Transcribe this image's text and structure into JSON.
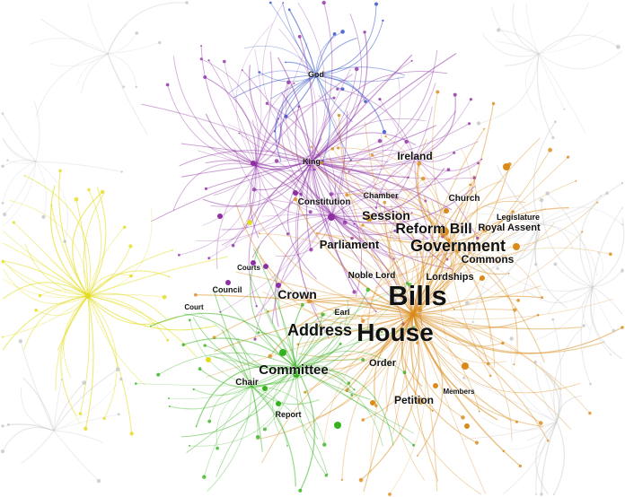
{
  "palette": {
    "purple": "#8e2ea3",
    "orange": "#d98a18",
    "yellow": "#e3dc1c",
    "green": "#37b21f",
    "blue": "#2b4ec6",
    "grey": "#c7c7c7"
  },
  "nodes": [
    {
      "id": "god",
      "label": "God",
      "cluster": "blue"
    },
    {
      "id": "king",
      "label": "King",
      "cluster": "purple"
    },
    {
      "id": "ireland",
      "label": "Ireland",
      "cluster": "purple"
    },
    {
      "id": "chamber",
      "label": "Chamber",
      "cluster": "purple"
    },
    {
      "id": "constitution",
      "label": "Constitution",
      "cluster": "purple"
    },
    {
      "id": "church",
      "label": "Church",
      "cluster": "orange"
    },
    {
      "id": "session",
      "label": "Session",
      "cluster": "orange"
    },
    {
      "id": "reformbill",
      "label": "Reform Bill",
      "cluster": "orange"
    },
    {
      "id": "legislature",
      "label": "Legislature",
      "cluster": "orange"
    },
    {
      "id": "royalassent",
      "label": "Royal Assent",
      "cluster": "orange"
    },
    {
      "id": "parliament",
      "label": "Parliament",
      "cluster": "purple"
    },
    {
      "id": "government",
      "label": "Government",
      "cluster": "orange"
    },
    {
      "id": "commons",
      "label": "Commons",
      "cluster": "orange"
    },
    {
      "id": "courts",
      "label": "Courts",
      "cluster": "purple"
    },
    {
      "id": "noblelord",
      "label": "Noble Lord",
      "cluster": "orange"
    },
    {
      "id": "lordships",
      "label": "Lordships",
      "cluster": "orange"
    },
    {
      "id": "council",
      "label": "Council",
      "cluster": "purple"
    },
    {
      "id": "crown",
      "label": "Crown",
      "cluster": "purple"
    },
    {
      "id": "bills",
      "label": "Bills",
      "cluster": "orange"
    },
    {
      "id": "court",
      "label": "Court",
      "cluster": "yellow"
    },
    {
      "id": "earl",
      "label": "Earl",
      "cluster": "orange"
    },
    {
      "id": "address",
      "label": "Address",
      "cluster": "orange"
    },
    {
      "id": "house",
      "label": "House",
      "cluster": "orange"
    },
    {
      "id": "order",
      "label": "Order",
      "cluster": "orange"
    },
    {
      "id": "committee",
      "label": "Committee",
      "cluster": "green"
    },
    {
      "id": "chair",
      "label": "Chair",
      "cluster": "green"
    },
    {
      "id": "members",
      "label": "Members",
      "cluster": "orange"
    },
    {
      "id": "petition",
      "label": "Petition",
      "cluster": "orange"
    },
    {
      "id": "report",
      "label": "Report",
      "cluster": "green"
    }
  ]
}
